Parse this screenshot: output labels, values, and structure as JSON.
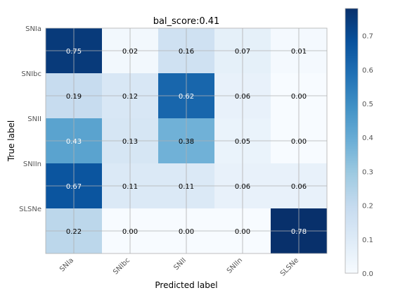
{
  "chart_data": {
    "type": "heatmap",
    "title": "bal_score:0.41",
    "xlabel": "Predicted label",
    "ylabel": "True label",
    "x_categories": [
      "SNIa",
      "SNIbc",
      "SNII",
      "SNIIn",
      "SLSNe"
    ],
    "y_categories": [
      "SNIa",
      "SNIbc",
      "SNII",
      "SNIIn",
      "SLSNe"
    ],
    "values": [
      [
        0.75,
        0.02,
        0.16,
        0.07,
        0.01
      ],
      [
        0.19,
        0.12,
        0.62,
        0.06,
        0.0
      ],
      [
        0.43,
        0.13,
        0.38,
        0.05,
        0.0
      ],
      [
        0.67,
        0.11,
        0.11,
        0.06,
        0.06
      ],
      [
        0.22,
        0.0,
        0.0,
        0.0,
        0.78
      ]
    ],
    "cell_labels": [
      [
        "0.75",
        "0.02",
        "0.16",
        "0.07",
        "0.01"
      ],
      [
        "0.19",
        "0.12",
        "0.62",
        "0.06",
        "0.00"
      ],
      [
        "0.43",
        "0.13",
        "0.38",
        "0.05",
        "0.00"
      ],
      [
        "0.67",
        "0.11",
        "0.11",
        "0.06",
        "0.06"
      ],
      [
        "0.22",
        "0.00",
        "0.00",
        "0.00",
        "0.78"
      ]
    ],
    "colormap": "Blues",
    "color_range": [
      0,
      0.78
    ],
    "colorbar_ticks": [
      "0.0",
      "0.1",
      "0.2",
      "0.3",
      "0.4",
      "0.5",
      "0.6",
      "0.7"
    ],
    "grid": true,
    "colors": {
      "low": "#f7fbff",
      "high": "#08306b",
      "grid": "#b0b0b0",
      "text_dark": "#000000",
      "text_light": "#ffffff"
    }
  }
}
